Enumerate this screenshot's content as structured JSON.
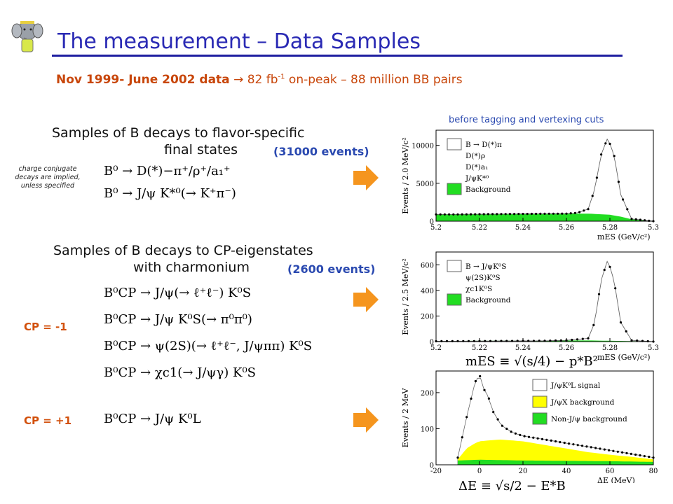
{
  "slide": {
    "title": "The measurement – Data Samples",
    "subtitle": {
      "bold": "Nov 1999- June 2002 data",
      "arrow": "→",
      "lumi": "82 fb",
      "lumi_exp": "-1",
      "rest": "on-peak – 88 million BB pairs"
    },
    "cc_note": "charge conjugate decays are implied, unless specified",
    "cut_note": "before tagging and vertexing cuts"
  },
  "flavor": {
    "line1": "Samples of B decays to flavor-specific",
    "line2": "final states",
    "events": "(31000 events)",
    "eq1": "B⁰ → D(*)−π⁺/ρ⁺/a₁⁺",
    "eq2": "B⁰ → J/ψ K*⁰(→ K⁺π⁻)"
  },
  "cp": {
    "line1": "Samples of B decays to CP-eigenstates",
    "line2": "with charmonium",
    "events": "(2600 events)",
    "odd_label": "CP = -1",
    "even_label": "CP = +1",
    "eq1": "B⁰CP → J/ψ(→ ℓ⁺ℓ⁻) K⁰S",
    "eq2": "B⁰CP → J/ψ K⁰S(→ π⁰π⁰)",
    "eq3": "B⁰CP → ψ(2S)(→ ℓ⁺ℓ⁻, J/ψππ) K⁰S",
    "eq4": "B⁰CP → χc1(→ J/ψγ) K⁰S",
    "eq5": "B⁰CP → J/ψ K⁰L"
  },
  "formulas": {
    "mes": "mES ≡ √(s/4) − p*B²",
    "de": "ΔE ≡ √s/2 − E*B"
  },
  "colors": {
    "title": "#2a2ab4",
    "accent": "#c8460a",
    "events": "#2a49b0",
    "arrow": "#f5951e",
    "background_fill": "#22dd22",
    "jpsix_fill": "#ffff00"
  },
  "icons": [
    "babar-elephant-logo",
    "orange-arrow-icon"
  ],
  "chart_data": [
    {
      "type": "line",
      "xlabel": "mES (GeV/c²)",
      "ylabel": "Events / 2.0 MeV/c²",
      "xlim": [
        5.2,
        5.3
      ],
      "ylim": [
        0,
        12000
      ],
      "xticks": [
        "5.2",
        "5.22",
        "5.24",
        "5.26",
        "5.28",
        "5.3"
      ],
      "yticks": [
        "0",
        "5000",
        "10000"
      ],
      "legend": [
        "B → D(*)π",
        "D(*)ρ",
        "D(*)a₁",
        "J/ψK*⁰",
        "Background"
      ],
      "series": [
        {
          "name": "B → D(*)π D(*)ρ D(*)a₁ J/ψK*⁰",
          "x": [
            5.2,
            5.21,
            5.22,
            5.23,
            5.24,
            5.25,
            5.26,
            5.265,
            5.27,
            5.273,
            5.276,
            5.279,
            5.282,
            5.285,
            5.29,
            5.3
          ],
          "y": [
            900,
            900,
            920,
            940,
            960,
            980,
            1000,
            1100,
            1600,
            4200,
            8800,
            11000,
            8600,
            3500,
            300,
            0
          ]
        },
        {
          "name": "Background",
          "x": [
            5.2,
            5.22,
            5.24,
            5.26,
            5.27,
            5.28,
            5.285,
            5.29,
            5.3
          ],
          "y": [
            900,
            920,
            960,
            1000,
            1000,
            850,
            600,
            250,
            0
          ]
        }
      ]
    },
    {
      "type": "line",
      "xlabel": "mES (GeV/c²)",
      "ylabel": "Events / 2.5 MeV/c²",
      "xlim": [
        5.2,
        5.3
      ],
      "ylim": [
        0,
        700
      ],
      "xticks": [
        "5.2",
        "5.22",
        "5.24",
        "5.26",
        "5.28",
        "5.3"
      ],
      "yticks": [
        "0",
        "200",
        "400",
        "600"
      ],
      "legend": [
        "B → J/ψK⁰S",
        "ψ(2S)K⁰S",
        "χc1K⁰S",
        "Background"
      ],
      "series": [
        {
          "name": "B → J/ψK⁰S ψ(2S)K⁰S χc1K⁰S",
          "x": [
            5.2,
            5.25,
            5.26,
            5.27,
            5.273,
            5.276,
            5.279,
            5.282,
            5.285,
            5.29,
            5.3
          ],
          "y": [
            3,
            6,
            10,
            25,
            150,
            480,
            640,
            470,
            150,
            10,
            0
          ]
        },
        {
          "name": "Background",
          "x": [
            5.2,
            5.24,
            5.27,
            5.29,
            5.3
          ],
          "y": [
            5,
            7,
            9,
            4,
            0
          ]
        }
      ]
    },
    {
      "type": "area",
      "xlabel": "ΔE (MeV)",
      "ylabel": "Events / 2 MeV",
      "xlim": [
        -20,
        80
      ],
      "ylim": [
        0,
        260
      ],
      "xticks": [
        "-20",
        "0",
        "20",
        "40",
        "60",
        "80"
      ],
      "yticks": [
        "0",
        "100",
        "200"
      ],
      "legend": [
        "J/ψK⁰L signal",
        "J/ψX background",
        "Non-J/ψ background"
      ],
      "series": [
        {
          "name": "J/ψK⁰L signal",
          "x": [
            -10,
            -6,
            -2,
            0,
            2,
            4,
            6,
            10,
            15,
            20,
            30,
            40,
            50,
            60,
            70,
            80
          ],
          "y": [
            20,
            130,
            230,
            250,
            210,
            190,
            150,
            110,
            90,
            80,
            70,
            60,
            50,
            40,
            30,
            20
          ]
        },
        {
          "name": "J/ψX background",
          "x": [
            -10,
            -6,
            -2,
            0,
            5,
            10,
            20,
            30,
            40,
            50,
            60,
            70,
            80
          ],
          "y": [
            15,
            45,
            60,
            65,
            68,
            70,
            65,
            55,
            45,
            35,
            28,
            22,
            15
          ]
        },
        {
          "name": "Non-J/ψ background",
          "x": [
            -10,
            0,
            20,
            40,
            60,
            80
          ],
          "y": [
            12,
            14,
            12,
            11,
            10,
            8
          ]
        }
      ]
    }
  ]
}
